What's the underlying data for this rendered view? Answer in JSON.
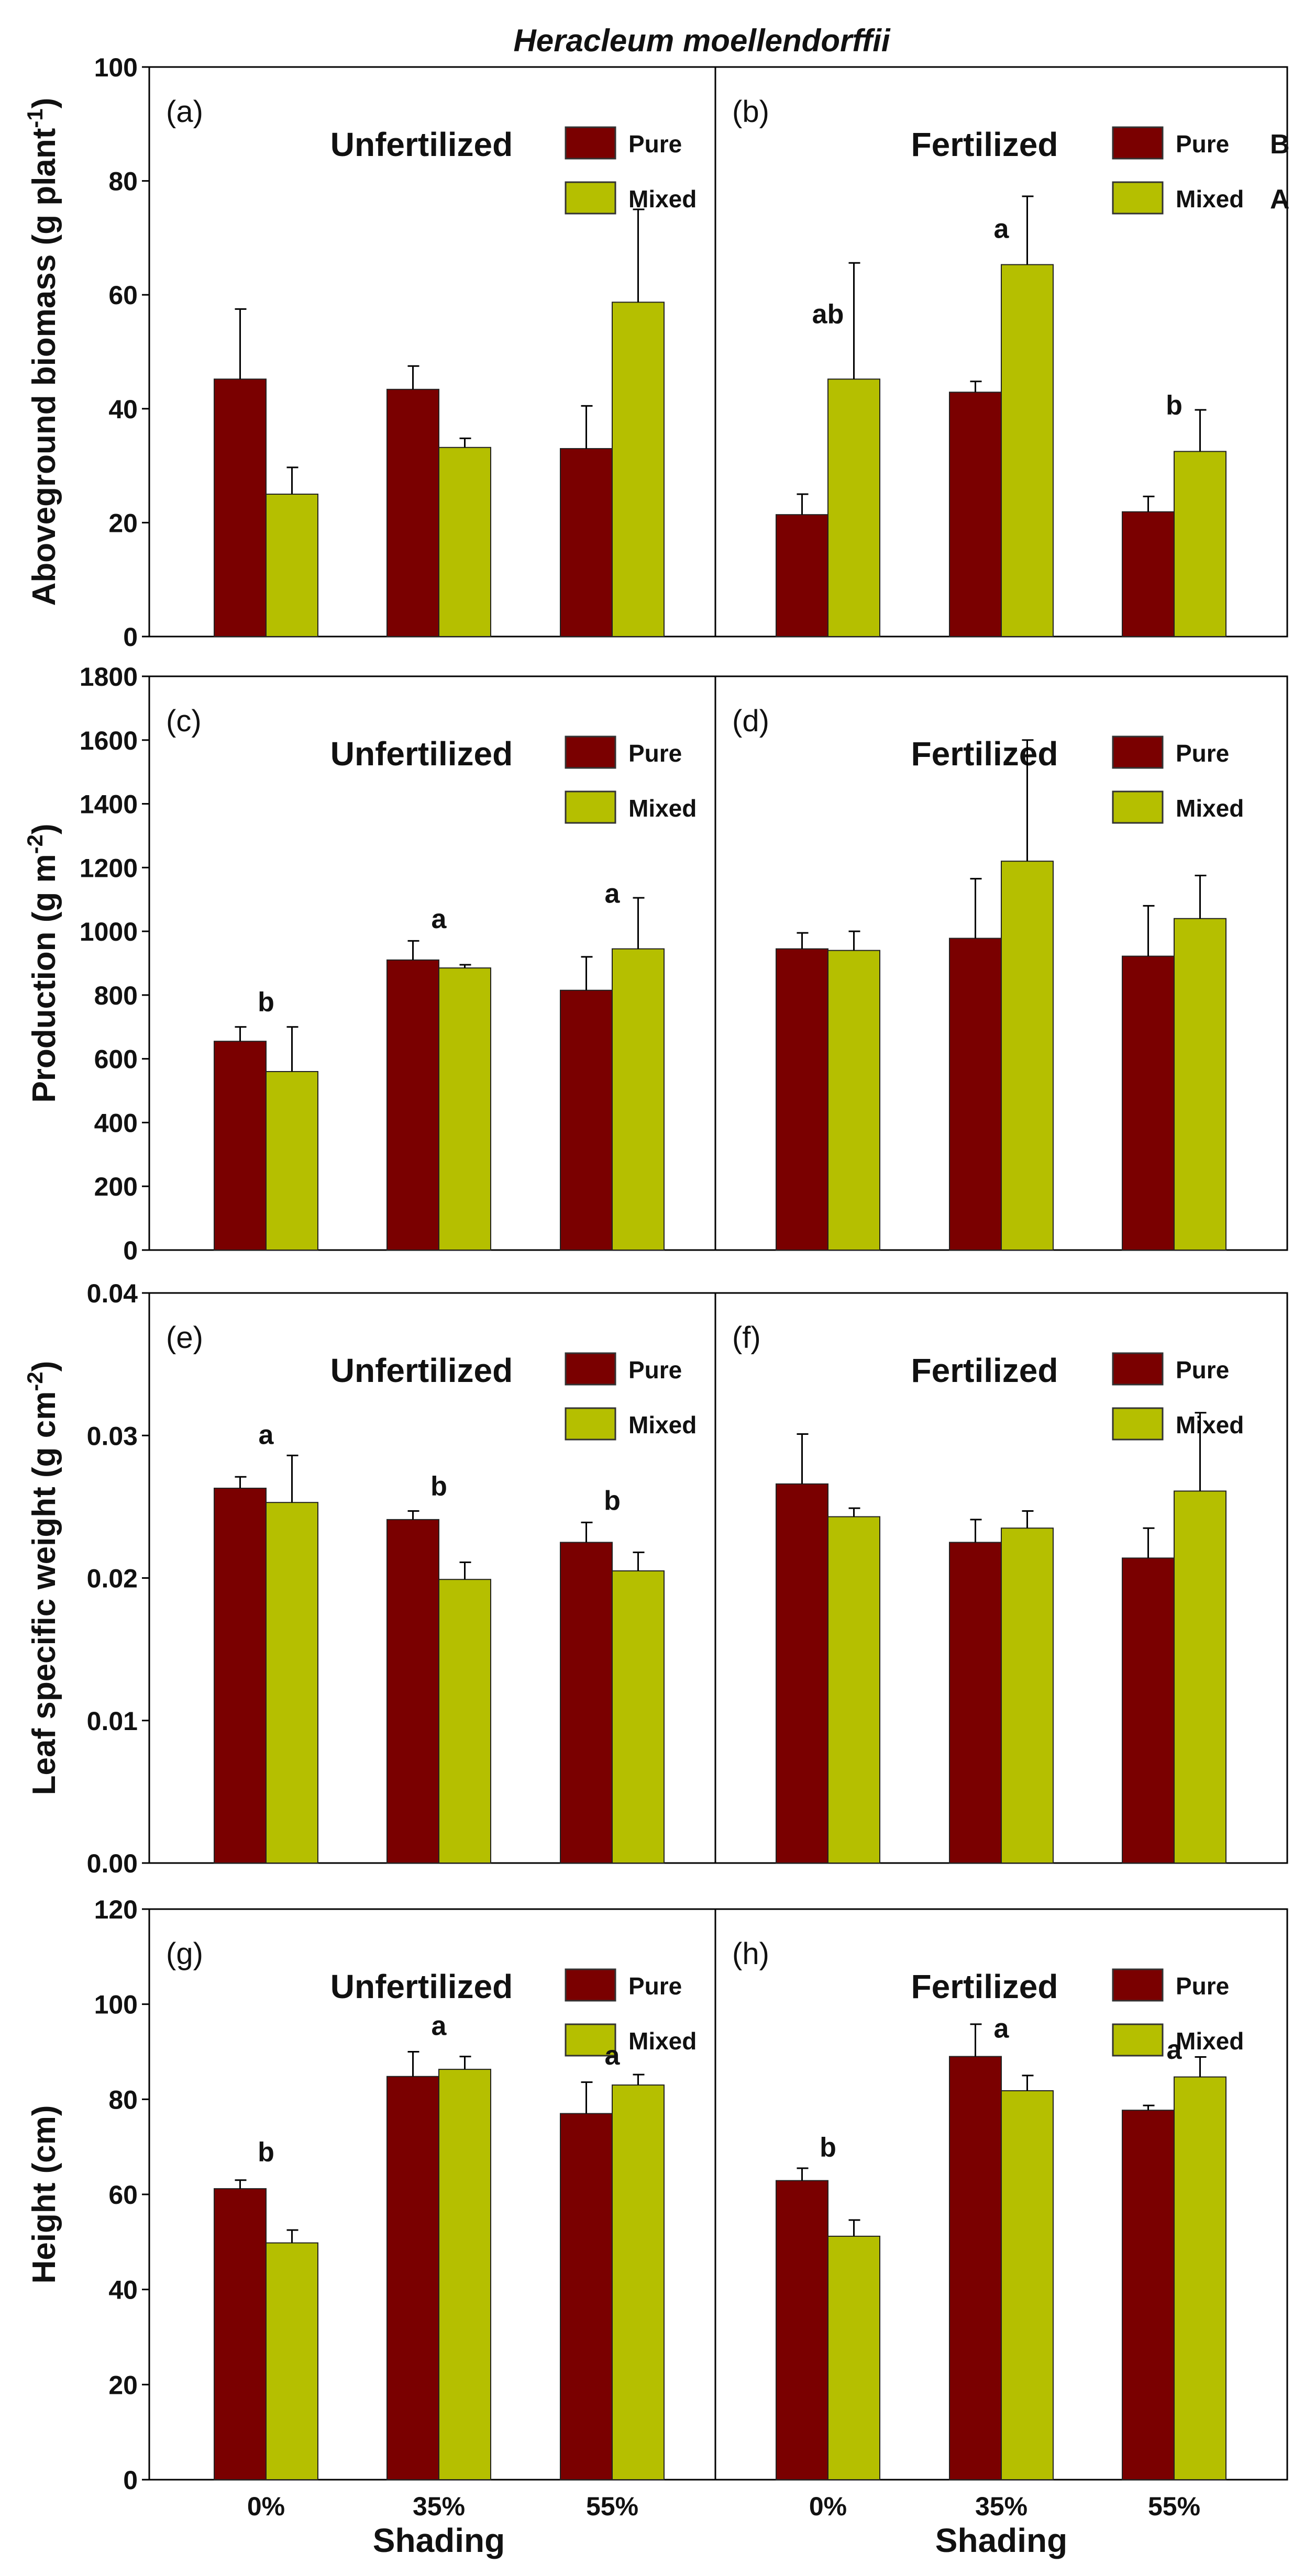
{
  "figure_title": "Heracleum moellendorffii",
  "colors": {
    "pure": "#7a0000",
    "mixed": "#b5bf00"
  },
  "chart_data": [
    {
      "type": "bar",
      "panel": "(a)",
      "title": "Unfertilized",
      "row": 0,
      "side": "left",
      "ylabel": {
        "text": "Aboveground biomass (g plant",
        "sup": "-1",
        "end": ")"
      },
      "ylim": [
        0,
        100
      ],
      "yticks": [
        0,
        20,
        40,
        60,
        80,
        100
      ],
      "tick_decimals": 0,
      "categories": [
        "0%",
        "35%",
        "55%"
      ],
      "legend": [
        {
          "name": "Pure",
          "mark": ""
        },
        {
          "name": "Mixed",
          "mark": ""
        }
      ],
      "series": [
        {
          "name": "Pure",
          "values": [
            45.2,
            43.4,
            33.0
          ],
          "err_top": [
            57.5,
            47.5,
            40.5
          ]
        },
        {
          "name": "Mixed",
          "values": [
            25.0,
            33.2,
            58.7
          ],
          "err_top": [
            29.7,
            34.8,
            75.0
          ]
        }
      ],
      "annotations": []
    },
    {
      "type": "bar",
      "panel": "(b)",
      "title": "Fertilized",
      "row": 0,
      "side": "right",
      "ylim": [
        0,
        100
      ],
      "categories": [
        "0%",
        "35%",
        "55%"
      ],
      "legend": [
        {
          "name": "Pure",
          "mark": "B"
        },
        {
          "name": "Mixed",
          "mark": "A"
        }
      ],
      "series": [
        {
          "name": "Pure",
          "values": [
            21.4,
            42.9,
            21.9
          ],
          "err_top": [
            25.0,
            44.8,
            24.6
          ]
        },
        {
          "name": "Mixed",
          "values": [
            45.2,
            65.3,
            32.5
          ],
          "err_top": [
            65.6,
            77.3,
            39.8
          ]
        }
      ],
      "annotations": [
        {
          "text": "ab",
          "category": 0,
          "y": 55
        },
        {
          "text": "a",
          "category": 1,
          "y": 70
        },
        {
          "text": "b",
          "category": 2,
          "y": 39
        }
      ]
    },
    {
      "type": "bar",
      "panel": "(c)",
      "title": "Unfertilized",
      "row": 1,
      "side": "left",
      "ylabel": {
        "text": "Production (g m",
        "sup": "-2",
        "end": ")"
      },
      "ylim": [
        0,
        1800
      ],
      "yticks": [
        0,
        200,
        400,
        600,
        800,
        1000,
        1200,
        1400,
        1600,
        1800
      ],
      "tick_decimals": 0,
      "categories": [
        "0%",
        "35%",
        "55%"
      ],
      "legend": [
        {
          "name": "Pure",
          "mark": ""
        },
        {
          "name": "Mixed",
          "mark": ""
        }
      ],
      "series": [
        {
          "name": "Pure",
          "values": [
            655,
            910,
            815
          ],
          "err_top": [
            700,
            970,
            920
          ]
        },
        {
          "name": "Mixed",
          "values": [
            560,
            885,
            945
          ],
          "err_top": [
            700,
            895,
            1105
          ]
        }
      ],
      "annotations": [
        {
          "text": "b",
          "category": 0,
          "y": 750
        },
        {
          "text": "a",
          "category": 1,
          "y": 1010
        },
        {
          "text": "a",
          "category": 2,
          "y": 1090
        }
      ]
    },
    {
      "type": "bar",
      "panel": "(d)",
      "title": "Fertilized",
      "row": 1,
      "side": "right",
      "ylim": [
        0,
        1800
      ],
      "categories": [
        "0%",
        "35%",
        "55%"
      ],
      "legend": [
        {
          "name": "Pure",
          "mark": ""
        },
        {
          "name": "Mixed",
          "mark": ""
        }
      ],
      "series": [
        {
          "name": "Pure",
          "values": [
            945,
            978,
            922
          ],
          "err_top": [
            995,
            1165,
            1080
          ]
        },
        {
          "name": "Mixed",
          "values": [
            940,
            1220,
            1040
          ],
          "err_top": [
            1000,
            1600,
            1175
          ]
        }
      ],
      "annotations": []
    },
    {
      "type": "bar",
      "panel": "(e)",
      "title": "Unfertilized",
      "row": 2,
      "side": "left",
      "ylabel": {
        "text": "Leaf specific weight (g cm",
        "sup": "-2",
        "end": ")"
      },
      "ylim": [
        0,
        0.04
      ],
      "yticks": [
        0,
        0.01,
        0.02,
        0.03,
        0.04
      ],
      "tick_decimals": 2,
      "categories": [
        "0%",
        "35%",
        "55%"
      ],
      "legend": [
        {
          "name": "Pure",
          "mark": ""
        },
        {
          "name": "Mixed",
          "mark": ""
        }
      ],
      "series": [
        {
          "name": "Pure",
          "values": [
            0.0263,
            0.0241,
            0.0225
          ],
          "err_top": [
            0.0271,
            0.0247,
            0.0239
          ]
        },
        {
          "name": "Mixed",
          "values": [
            0.0253,
            0.0199,
            0.0205
          ],
          "err_top": [
            0.0286,
            0.0211,
            0.0218
          ]
        }
      ],
      "annotations": [
        {
          "text": "a",
          "category": 0,
          "y": 0.0294
        },
        {
          "text": "b",
          "category": 1,
          "y": 0.0258
        },
        {
          "text": "b",
          "category": 2,
          "y": 0.0248
        }
      ]
    },
    {
      "type": "bar",
      "panel": "(f)",
      "title": "Fertilized",
      "row": 2,
      "side": "right",
      "ylim": [
        0,
        0.04
      ],
      "categories": [
        "0%",
        "35%",
        "55%"
      ],
      "legend": [
        {
          "name": "Pure",
          "mark": ""
        },
        {
          "name": "Mixed",
          "mark": ""
        }
      ],
      "series": [
        {
          "name": "Pure",
          "values": [
            0.0266,
            0.0225,
            0.0214
          ],
          "err_top": [
            0.0301,
            0.0241,
            0.0235
          ]
        },
        {
          "name": "Mixed",
          "values": [
            0.0243,
            0.0235,
            0.0261
          ],
          "err_top": [
            0.0249,
            0.0247,
            0.0316
          ]
        }
      ],
      "annotations": []
    },
    {
      "type": "bar",
      "panel": "(g)",
      "title": "Unfertilized",
      "row": 3,
      "side": "left",
      "ylabel": {
        "text": "Height (cm)",
        "sup": "",
        "end": ""
      },
      "ylim": [
        0,
        120
      ],
      "yticks": [
        0,
        20,
        40,
        60,
        80,
        100,
        120
      ],
      "tick_decimals": 0,
      "categories": [
        "0%",
        "35%",
        "55%"
      ],
      "xlabel": "Shading",
      "legend": [
        {
          "name": "Pure",
          "mark": ""
        },
        {
          "name": "Mixed",
          "mark": ""
        }
      ],
      "series": [
        {
          "name": "Pure",
          "values": [
            61.2,
            84.8,
            77.0
          ],
          "err_top": [
            63.0,
            90.0,
            83.6
          ]
        },
        {
          "name": "Mixed",
          "values": [
            49.8,
            86.3,
            83.0
          ],
          "err_top": [
            52.5,
            89.0,
            85.2
          ]
        }
      ],
      "annotations": [
        {
          "text": "b",
          "category": 0,
          "y": 67
        },
        {
          "text": "a",
          "category": 1,
          "y": 93.5
        },
        {
          "text": "a",
          "category": 2,
          "y": 87.3
        }
      ]
    },
    {
      "type": "bar",
      "panel": "(h)",
      "title": "Fertilized",
      "row": 3,
      "side": "right",
      "ylim": [
        0,
        120
      ],
      "categories": [
        "0%",
        "35%",
        "55%"
      ],
      "xlabel": "Shading",
      "legend": [
        {
          "name": "Pure",
          "mark": ""
        },
        {
          "name": "Mixed",
          "mark": ""
        }
      ],
      "series": [
        {
          "name": "Pure",
          "values": [
            62.9,
            89.0,
            77.7
          ],
          "err_top": [
            65.5,
            95.8,
            78.7
          ]
        },
        {
          "name": "Mixed",
          "values": [
            51.2,
            81.8,
            84.7
          ],
          "err_top": [
            54.6,
            85.0,
            88.9
          ]
        }
      ],
      "annotations": [
        {
          "text": "b",
          "category": 0,
          "y": 68
        },
        {
          "text": "a",
          "category": 1,
          "y": 93
        },
        {
          "text": "a",
          "category": 2,
          "y": 88.5
        }
      ]
    }
  ]
}
